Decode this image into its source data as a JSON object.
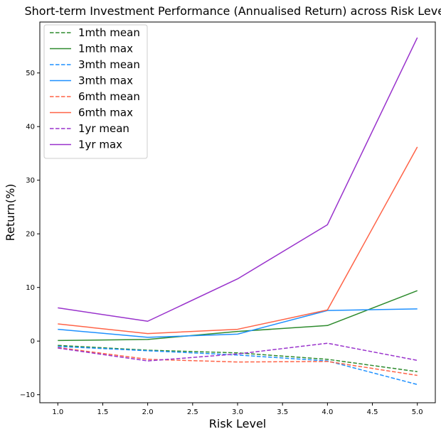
{
  "chart_data": {
    "type": "line",
    "title": "Short-term Investment Performance (Annualised Return) across Risk Level",
    "xlabel": "Risk Level",
    "ylabel": "Return(%)",
    "xlim": [
      0.8,
      5.2
    ],
    "ylim": [
      -11.5,
      59.5
    ],
    "x": [
      1,
      2,
      3,
      4,
      5
    ],
    "x_ticks": [
      1.0,
      1.5,
      2.0,
      2.5,
      3.0,
      3.5,
      4.0,
      4.5,
      5.0
    ],
    "x_tick_labels": [
      "1.0",
      "1.5",
      "2.0",
      "2.5",
      "3.0",
      "3.5",
      "4.0",
      "4.5",
      "5.0"
    ],
    "y_ticks": [
      -10,
      0,
      10,
      20,
      30,
      40,
      50
    ],
    "y_tick_labels": [
      "−10",
      "0",
      "10",
      "20",
      "30",
      "40",
      "50"
    ],
    "grid": false,
    "legend_position": "top-left",
    "series": [
      {
        "name": "1mth mean",
        "color": "#2e8b2e",
        "dash": true,
        "values": [
          -0.8,
          -1.7,
          -2.2,
          -3.4,
          -5.7
        ]
      },
      {
        "name": "1mth max",
        "color": "#2e8b2e",
        "dash": false,
        "values": [
          0.1,
          0.3,
          1.8,
          2.9,
          9.4
        ]
      },
      {
        "name": "3mth mean",
        "color": "#1e90ff",
        "dash": true,
        "values": [
          -1.0,
          -1.8,
          -2.6,
          -3.7,
          -8.1
        ]
      },
      {
        "name": "3mth max",
        "color": "#1e90ff",
        "dash": false,
        "values": [
          2.2,
          0.7,
          1.3,
          5.7,
          6.0
        ]
      },
      {
        "name": "6mth mean",
        "color": "#ff6347",
        "dash": true,
        "values": [
          -1.2,
          -3.4,
          -3.9,
          -3.8,
          -6.4
        ]
      },
      {
        "name": "6mth max",
        "color": "#ff6347",
        "dash": false,
        "values": [
          3.2,
          1.4,
          2.2,
          5.8,
          36.2
        ]
      },
      {
        "name": "1yr mean",
        "color": "#9932cc",
        "dash": true,
        "values": [
          -1.3,
          -3.7,
          -2.4,
          -0.4,
          -3.6
        ]
      },
      {
        "name": "1yr max",
        "color": "#9932cc",
        "dash": false,
        "values": [
          6.2,
          3.7,
          11.6,
          21.7,
          56.6
        ]
      }
    ]
  }
}
